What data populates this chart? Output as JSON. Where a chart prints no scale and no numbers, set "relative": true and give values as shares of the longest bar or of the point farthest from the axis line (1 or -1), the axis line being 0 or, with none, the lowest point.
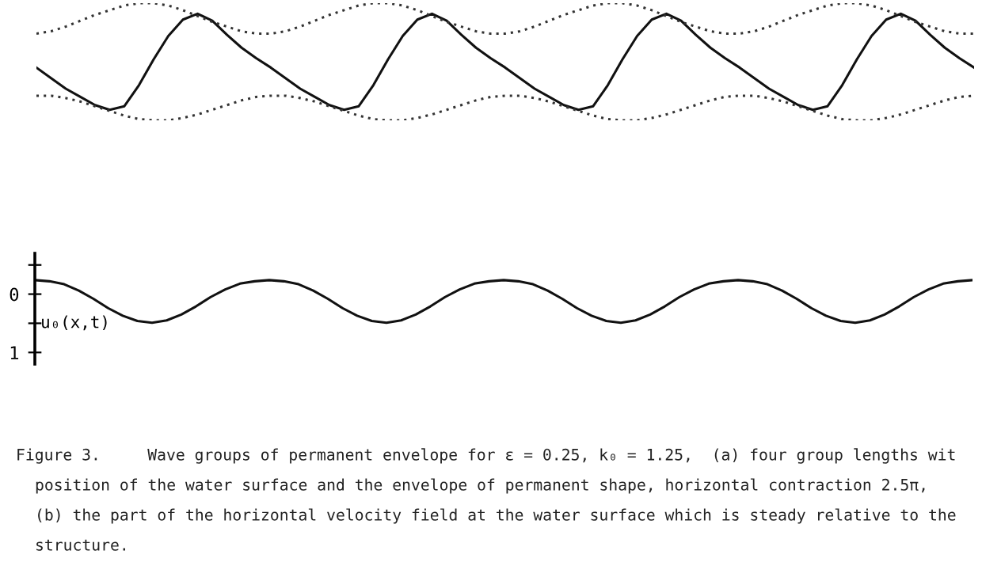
{
  "chart_data": [
    {
      "type": "line",
      "relative": true,
      "grid": false,
      "legend": false,
      "categories": [
        null,
        null,
        null,
        null,
        null,
        null,
        null,
        null,
        null,
        null,
        null,
        null,
        null,
        null,
        null,
        null,
        null,
        null,
        null,
        null,
        null,
        null,
        null,
        null,
        null,
        null,
        null,
        null,
        null,
        null,
        null,
        null,
        null,
        null,
        null,
        null,
        null,
        null,
        null,
        null,
        null,
        null,
        null,
        null,
        null,
        null,
        null,
        null,
        null,
        null,
        null,
        null,
        null,
        null,
        null,
        null,
        null,
        null,
        null,
        null,
        null,
        null,
        null,
        null,
        null
      ],
      "series": [
        {
          "color": "#111111",
          "line_style": "solid",
          "values": [
            0.45,
            0.36,
            0.27,
            0.2,
            0.13,
            0.09,
            0.12,
            0.3,
            0.52,
            0.72,
            0.86,
            0.91,
            0.85,
            0.73,
            0.62,
            0.53,
            0.45,
            0.36,
            0.27,
            0.2,
            0.13,
            0.09,
            0.12,
            0.3,
            0.52,
            0.72,
            0.86,
            0.91,
            0.85,
            0.73,
            0.62,
            0.53,
            0.45,
            0.36,
            0.27,
            0.2,
            0.13,
            0.09,
            0.12,
            0.3,
            0.52,
            0.72,
            0.86,
            0.91,
            0.85,
            0.73,
            0.62,
            0.53,
            0.45,
            0.36,
            0.27,
            0.2,
            0.13,
            0.09,
            0.12,
            0.3,
            0.52,
            0.72,
            0.86,
            0.91,
            0.85,
            0.73,
            0.62,
            0.53,
            0.45
          ]
        },
        {
          "color": "#333333",
          "line_style": "dotted",
          "values": [
            0.74,
            0.76,
            0.8,
            0.85,
            0.9,
            0.94,
            0.98,
            1.0,
            1.0,
            0.98,
            0.94,
            0.89,
            0.84,
            0.8,
            0.76,
            0.74,
            0.74,
            0.76,
            0.8,
            0.85,
            0.9,
            0.94,
            0.98,
            1.0,
            1.0,
            0.98,
            0.94,
            0.89,
            0.84,
            0.8,
            0.76,
            0.74,
            0.74,
            0.76,
            0.8,
            0.85,
            0.9,
            0.94,
            0.98,
            1.0,
            1.0,
            0.98,
            0.94,
            0.89,
            0.84,
            0.8,
            0.76,
            0.74,
            0.74,
            0.76,
            0.8,
            0.85,
            0.9,
            0.94,
            0.98,
            1.0,
            1.0,
            0.98,
            0.94,
            0.89,
            0.84,
            0.8,
            0.76,
            0.74,
            0.74
          ]
        },
        {
          "color": "#333333",
          "line_style": "dotted",
          "values": [
            0.21,
            0.21,
            0.19,
            0.16,
            0.12,
            0.08,
            0.04,
            0.01,
            0.0,
            0.0,
            0.02,
            0.05,
            0.09,
            0.13,
            0.17,
            0.2,
            0.21,
            0.21,
            0.19,
            0.16,
            0.12,
            0.08,
            0.04,
            0.01,
            0.0,
            0.0,
            0.02,
            0.05,
            0.09,
            0.13,
            0.17,
            0.2,
            0.21,
            0.21,
            0.19,
            0.16,
            0.12,
            0.08,
            0.04,
            0.01,
            0.0,
            0.0,
            0.02,
            0.05,
            0.09,
            0.13,
            0.17,
            0.2,
            0.21,
            0.21,
            0.19,
            0.16,
            0.12,
            0.08,
            0.04,
            0.01,
            0.0,
            0.0,
            0.02,
            0.05,
            0.09,
            0.13,
            0.17,
            0.2,
            0.21
          ]
        }
      ]
    },
    {
      "type": "line",
      "grid": false,
      "legend": false,
      "tick_labels": "y",
      "ylabel": "u₀(x,t)",
      "ylim": [
        1.2,
        -0.7
      ],
      "yticks": [
        {
          "value": -0.5,
          "label": null
        },
        0,
        {
          "value": 0.5,
          "label": null
        },
        1
      ],
      "categories": [
        null,
        null,
        null,
        null,
        null,
        null,
        null,
        null,
        null,
        null,
        null,
        null,
        null,
        null,
        null,
        null,
        null,
        null,
        null,
        null,
        null,
        null,
        null,
        null,
        null,
        null,
        null,
        null,
        null,
        null,
        null,
        null,
        null,
        null,
        null,
        null,
        null,
        null,
        null,
        null,
        null,
        null,
        null,
        null,
        null,
        null,
        null,
        null,
        null,
        null,
        null,
        null,
        null,
        null,
        null,
        null,
        null,
        null,
        null,
        null,
        null,
        null,
        null,
        null,
        null
      ],
      "series": [
        {
          "color": "#111111",
          "line_style": "solid",
          "values": [
            -0.24,
            -0.22,
            -0.17,
            -0.06,
            0.08,
            0.24,
            0.37,
            0.46,
            0.49,
            0.45,
            0.35,
            0.21,
            0.05,
            -0.08,
            -0.18,
            -0.22,
            -0.24,
            -0.22,
            -0.17,
            -0.06,
            0.08,
            0.24,
            0.37,
            0.46,
            0.49,
            0.45,
            0.35,
            0.21,
            0.05,
            -0.08,
            -0.18,
            -0.22,
            -0.24,
            -0.22,
            -0.17,
            -0.06,
            0.08,
            0.24,
            0.37,
            0.46,
            0.49,
            0.45,
            0.35,
            0.21,
            0.05,
            -0.08,
            -0.18,
            -0.22,
            -0.24,
            -0.22,
            -0.17,
            -0.06,
            0.08,
            0.24,
            0.37,
            0.46,
            0.49,
            0.45,
            0.35,
            0.21,
            0.05,
            -0.08,
            -0.18,
            -0.22,
            -0.24
          ]
        }
      ],
      "annotations": [
        "Figure 3.     Wave groups of permanent envelope for ε = 0.25, k₀ = 1.25,  (a) four group lengths wit",
        "position of the water surface and the envelope of permanent shape, horizontal contraction 2.5π,",
        "(b) the part of the horizontal velocity field at the water surface which is steady relative to the",
        "structure."
      ]
    }
  ]
}
